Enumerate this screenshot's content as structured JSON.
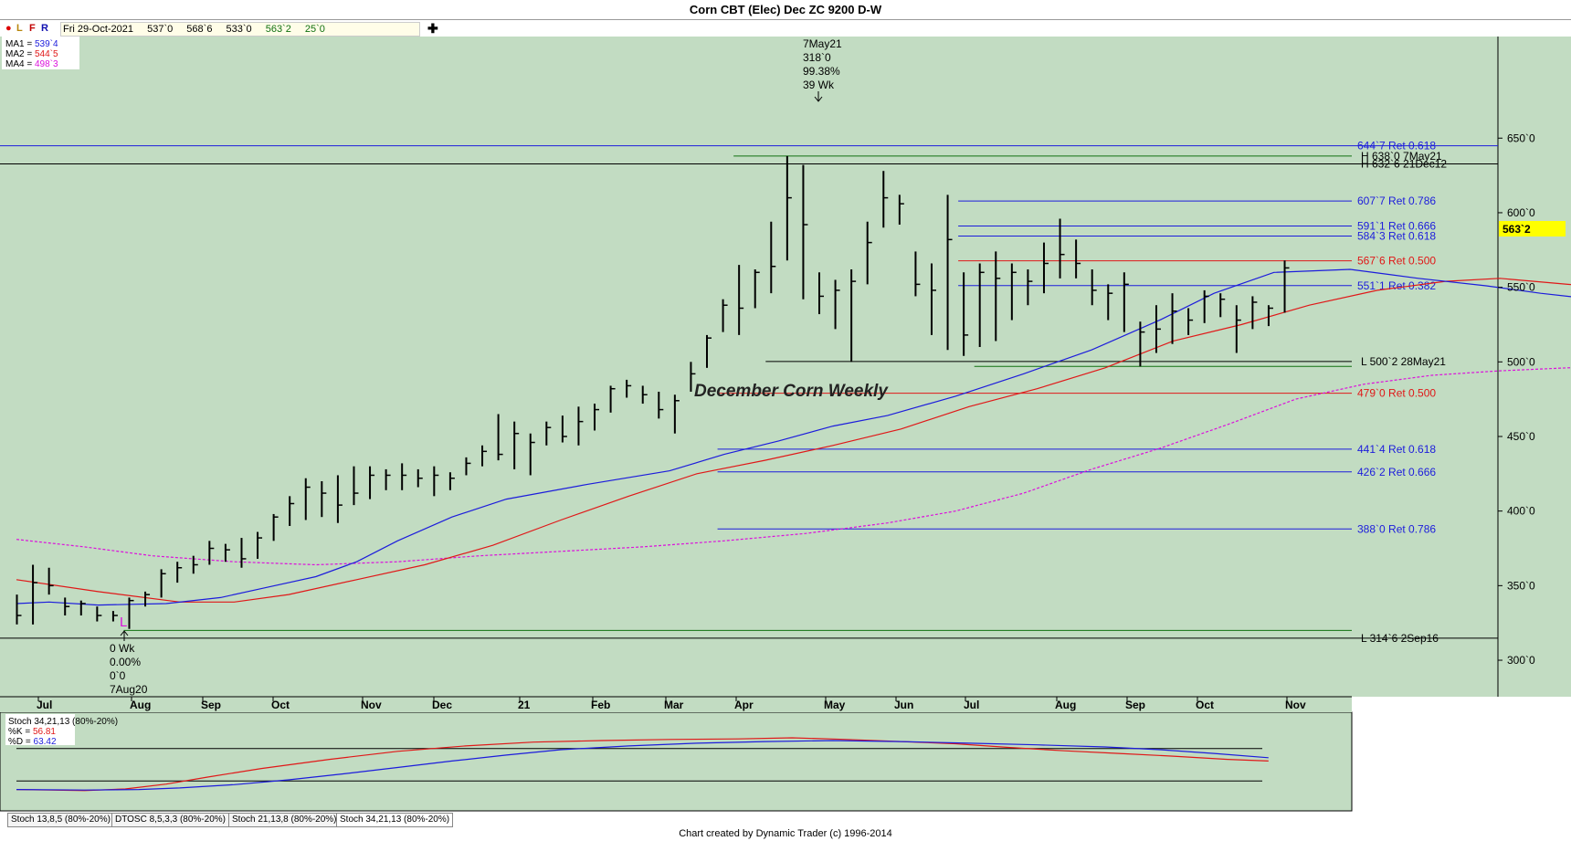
{
  "window": {
    "title": "Corn CBT (Elec) Dec ZC 9200 D-W"
  },
  "toolbar": {
    "buttons": [
      "L",
      "F",
      "R"
    ],
    "date": "Fri 29-Oct-2021",
    "open": "537`0",
    "high": "568`6",
    "low": "533`0",
    "close": "563`2",
    "change": "25`0",
    "add_icon": "plus-icon"
  },
  "colors": {
    "background": "#c2dcc2",
    "ma1": "#1c1cdc",
    "ma2": "#e01818",
    "ma4": "#dc10dc",
    "price_tag": "#ffff00"
  },
  "chart_data": {
    "type": "bar",
    "title": "December Corn Weekly",
    "ylim": [
      280,
      680
    ],
    "y_ticks": [
      "300`0",
      "350`0",
      "400`0",
      "450`0",
      "500`0",
      "550`0",
      "600`0",
      "650`0"
    ],
    "x_months": [
      "Jul",
      "Aug",
      "Sep",
      "Oct",
      "Nov",
      "Dec",
      "21",
      "Feb",
      "Mar",
      "Apr",
      "May",
      "Jun",
      "Jul",
      "Aug",
      "Sep",
      "Oct",
      "Nov"
    ],
    "last_price": "563`2",
    "legend": [
      {
        "label": "MA1 = ",
        "value": "539`4"
      },
      {
        "label": "MA2 = ",
        "value": "544`5"
      },
      {
        "label": "MA4 = ",
        "value": "498`3"
      }
    ],
    "bars": [
      {
        "h": 344,
        "l": 324,
        "c": 330
      },
      {
        "h": 364,
        "l": 324,
        "c": 352
      },
      {
        "h": 362,
        "l": 344,
        "c": 350
      },
      {
        "h": 342,
        "l": 330,
        "c": 336
      },
      {
        "h": 340,
        "l": 330,
        "c": 338
      },
      {
        "h": 336,
        "l": 326,
        "c": 330
      },
      {
        "h": 333,
        "l": 326,
        "c": 330
      },
      {
        "h": 342,
        "l": 321,
        "c": 340
      },
      {
        "h": 346,
        "l": 336,
        "c": 344
      },
      {
        "h": 361,
        "l": 342,
        "c": 358
      },
      {
        "h": 366,
        "l": 352,
        "c": 362
      },
      {
        "h": 370,
        "l": 358,
        "c": 364
      },
      {
        "h": 380,
        "l": 364,
        "c": 375
      },
      {
        "h": 378,
        "l": 366,
        "c": 374
      },
      {
        "h": 382,
        "l": 362,
        "c": 368
      },
      {
        "h": 386,
        "l": 368,
        "c": 382
      },
      {
        "h": 398,
        "l": 380,
        "c": 396
      },
      {
        "h": 410,
        "l": 390,
        "c": 405
      },
      {
        "h": 422,
        "l": 394,
        "c": 416
      },
      {
        "h": 420,
        "l": 396,
        "c": 412
      },
      {
        "h": 424,
        "l": 392,
        "c": 404
      },
      {
        "h": 430,
        "l": 404,
        "c": 412
      },
      {
        "h": 430,
        "l": 408,
        "c": 424
      },
      {
        "h": 428,
        "l": 414,
        "c": 424
      },
      {
        "h": 432,
        "l": 414,
        "c": 424
      },
      {
        "h": 428,
        "l": 416,
        "c": 422
      },
      {
        "h": 430,
        "l": 410,
        "c": 424
      },
      {
        "h": 426,
        "l": 414,
        "c": 422
      },
      {
        "h": 436,
        "l": 424,
        "c": 432
      },
      {
        "h": 444,
        "l": 430,
        "c": 440
      },
      {
        "h": 465,
        "l": 434,
        "c": 438
      },
      {
        "h": 460,
        "l": 428,
        "c": 452
      },
      {
        "h": 452,
        "l": 424,
        "c": 446
      },
      {
        "h": 460,
        "l": 444,
        "c": 456
      },
      {
        "h": 464,
        "l": 446,
        "c": 450
      },
      {
        "h": 470,
        "l": 444,
        "c": 460
      },
      {
        "h": 472,
        "l": 454,
        "c": 468
      },
      {
        "h": 484,
        "l": 466,
        "c": 482
      },
      {
        "h": 488,
        "l": 476,
        "c": 484
      },
      {
        "h": 484,
        "l": 472,
        "c": 478
      },
      {
        "h": 480,
        "l": 462,
        "c": 468
      },
      {
        "h": 478,
        "l": 452,
        "c": 474
      },
      {
        "h": 500,
        "l": 480,
        "c": 492
      },
      {
        "h": 518,
        "l": 496,
        "c": 516
      },
      {
        "h": 542,
        "l": 520,
        "c": 538
      },
      {
        "h": 565,
        "l": 518,
        "c": 536
      },
      {
        "h": 562,
        "l": 536,
        "c": 560
      },
      {
        "h": 594,
        "l": 546,
        "c": 564
      },
      {
        "h": 638,
        "l": 568,
        "c": 610
      },
      {
        "h": 632,
        "l": 542,
        "c": 592
      },
      {
        "h": 560,
        "l": 532,
        "c": 544
      },
      {
        "h": 555,
        "l": 522,
        "c": 548
      },
      {
        "h": 562,
        "l": 500,
        "c": 554
      },
      {
        "h": 594,
        "l": 552,
        "c": 580
      },
      {
        "h": 628,
        "l": 590,
        "c": 610
      },
      {
        "h": 612,
        "l": 592,
        "c": 606
      },
      {
        "h": 574,
        "l": 544,
        "c": 552
      },
      {
        "h": 566,
        "l": 518,
        "c": 548
      },
      {
        "h": 612,
        "l": 508,
        "c": 582
      },
      {
        "h": 560,
        "l": 504,
        "c": 518
      },
      {
        "h": 566,
        "l": 510,
        "c": 560
      },
      {
        "h": 574,
        "l": 514,
        "c": 556
      },
      {
        "h": 566,
        "l": 528,
        "c": 560
      },
      {
        "h": 562,
        "l": 538,
        "c": 554
      },
      {
        "h": 580,
        "l": 546,
        "c": 566
      },
      {
        "h": 596,
        "l": 556,
        "c": 572
      },
      {
        "h": 582,
        "l": 556,
        "c": 566
      },
      {
        "h": 562,
        "l": 538,
        "c": 548
      },
      {
        "h": 552,
        "l": 528,
        "c": 546
      },
      {
        "h": 560,
        "l": 520,
        "c": 552
      },
      {
        "h": 527,
        "l": 497,
        "c": 520
      },
      {
        "h": 538,
        "l": 506,
        "c": 522
      },
      {
        "h": 546,
        "l": 512,
        "c": 534
      },
      {
        "h": 536,
        "l": 518,
        "c": 528
      },
      {
        "h": 548,
        "l": 526,
        "c": 544
      },
      {
        "h": 546,
        "l": 530,
        "c": 542
      },
      {
        "h": 538,
        "l": 506,
        "c": 528
      },
      {
        "h": 544,
        "l": 522,
        "c": 540
      },
      {
        "h": 538,
        "l": 524,
        "c": 536
      },
      {
        "h": 568,
        "l": 533,
        "c": 563
      }
    ],
    "ma_lines": {
      "ma1": [
        [
          0,
          338
        ],
        [
          12,
          339
        ],
        [
          30,
          337
        ],
        [
          55,
          338
        ],
        [
          75,
          342
        ],
        [
          90,
          348
        ],
        [
          110,
          356
        ],
        [
          125,
          366
        ],
        [
          140,
          380
        ],
        [
          160,
          396
        ],
        [
          180,
          408
        ],
        [
          210,
          418
        ],
        [
          240,
          427
        ],
        [
          260,
          438
        ],
        [
          280,
          447
        ],
        [
          300,
          457
        ],
        [
          320,
          464
        ],
        [
          345,
          477
        ],
        [
          370,
          492
        ],
        [
          395,
          508
        ],
        [
          420,
          528
        ],
        [
          440,
          546
        ],
        [
          462,
          560
        ],
        [
          490,
          562
        ],
        [
          515,
          556
        ],
        [
          540,
          551
        ],
        [
          560,
          546
        ],
        [
          590,
          540
        ],
        [
          615,
          538
        ],
        [
          640,
          538
        ]
      ],
      "ma2": [
        [
          0,
          354
        ],
        [
          30,
          346
        ],
        [
          60,
          339
        ],
        [
          80,
          339
        ],
        [
          100,
          344
        ],
        [
          125,
          354
        ],
        [
          150,
          364
        ],
        [
          175,
          377
        ],
        [
          200,
          394
        ],
        [
          225,
          410
        ],
        [
          250,
          425
        ],
        [
          275,
          434
        ],
        [
          300,
          444
        ],
        [
          325,
          455
        ],
        [
          350,
          470
        ],
        [
          375,
          482
        ],
        [
          400,
          496
        ],
        [
          425,
          514
        ],
        [
          450,
          525
        ],
        [
          475,
          538
        ],
        [
          500,
          548
        ],
        [
          525,
          554
        ],
        [
          545,
          556
        ],
        [
          570,
          552
        ],
        [
          600,
          548
        ],
        [
          640,
          545
        ]
      ],
      "ma4": [
        [
          0,
          381
        ],
        [
          25,
          376
        ],
        [
          50,
          370
        ],
        [
          80,
          366
        ],
        [
          110,
          364
        ],
        [
          140,
          366
        ],
        [
          170,
          370
        ],
        [
          200,
          373
        ],
        [
          230,
          376
        ],
        [
          260,
          380
        ],
        [
          290,
          385
        ],
        [
          320,
          392
        ],
        [
          345,
          400
        ],
        [
          370,
          412
        ],
        [
          395,
          428
        ],
        [
          420,
          442
        ],
        [
          445,
          458
        ],
        [
          470,
          475
        ],
        [
          495,
          485
        ],
        [
          520,
          491
        ],
        [
          545,
          494
        ],
        [
          570,
          496
        ],
        [
          600,
          498
        ],
        [
          640,
          499
        ]
      ]
    },
    "fib_levels": [
      {
        "price": 644.875,
        "label": "644`7 Ret 0.618",
        "color": "#1c1cdc",
        "start": -1
      },
      {
        "price": 607.875,
        "label": "607`7 Ret 0.786",
        "color": "#1c1cdc",
        "start": 59
      },
      {
        "price": 591.125,
        "label": "591`1 Ret 0.666",
        "color": "#1c1cdc",
        "start": 59
      },
      {
        "price": 584.375,
        "label": "584`3 Ret 0.618",
        "color": "#1c1cdc",
        "start": 59
      },
      {
        "price": 567.75,
        "label": "567`6 Ret 0.500",
        "color": "#e01818",
        "start": 59
      },
      {
        "price": 551.125,
        "label": "551`1 Ret 0.382",
        "color": "#1c1cdc",
        "start": 59
      },
      {
        "price": 479.0,
        "label": "479`0 Ret 0.500",
        "color": "#e01818",
        "start": 44
      },
      {
        "price": 441.5,
        "label": "441`4 Ret 0.618",
        "color": "#1c1cdc",
        "start": 44
      },
      {
        "price": 426.25,
        "label": "426`2 Ret 0.666",
        "color": "#1c1cdc",
        "start": 44
      },
      {
        "price": 388.0,
        "label": "388`0 Ret 0.786",
        "color": "#1c1cdc",
        "start": 44
      }
    ],
    "hl_levels": [
      {
        "price": 638.0,
        "label": "H 638`0 7May21",
        "color": "#107010",
        "start": 45
      },
      {
        "price": 632.75,
        "label": "H 632`6 21Dec12",
        "color": "#000000",
        "start": -1
      },
      {
        "price": 500.25,
        "label": "L 500`2 28May21",
        "color": "#000000",
        "start": 47
      },
      {
        "price": 497.0,
        "label": "",
        "color": "#107010",
        "start": 60
      },
      {
        "price": 320.0,
        "label": "",
        "color": "#107010",
        "start": 7
      },
      {
        "price": 314.75,
        "label": "L 314`6 2Sep16",
        "color": "#000000",
        "start": -1
      }
    ],
    "annotations": {
      "high": [
        "7May21",
        "318`0",
        "99.38%",
        "39 Wk"
      ],
      "low": [
        "0 Wk",
        "0.00%",
        "0`0",
        "7Aug20"
      ],
      "low_marker": "L"
    },
    "oscillator": {
      "title": "Stoch 34,21,13 (80%-20%)",
      "k_label": "%K = ",
      "k_value": "56.81",
      "d_label": "%D = ",
      "d_value": "63.42",
      "k": [
        [
          0,
          4
        ],
        [
          12,
          3
        ],
        [
          25,
          2
        ],
        [
          40,
          5
        ],
        [
          55,
          14
        ],
        [
          70,
          27
        ],
        [
          90,
          43
        ],
        [
          115,
          60
        ],
        [
          140,
          75
        ],
        [
          165,
          85
        ],
        [
          190,
          92
        ],
        [
          215,
          95
        ],
        [
          240,
          97
        ],
        [
          265,
          98
        ],
        [
          285,
          100
        ],
        [
          305,
          97
        ],
        [
          325,
          93
        ],
        [
          345,
          89
        ],
        [
          365,
          82
        ],
        [
          385,
          76
        ],
        [
          405,
          71
        ],
        [
          425,
          66
        ],
        [
          445,
          60
        ],
        [
          460,
          57
        ]
      ],
      "d": [
        [
          0,
          4
        ],
        [
          25,
          3
        ],
        [
          45,
          4
        ],
        [
          60,
          7
        ],
        [
          80,
          13
        ],
        [
          100,
          22
        ],
        [
          120,
          33
        ],
        [
          140,
          45
        ],
        [
          160,
          57
        ],
        [
          180,
          68
        ],
        [
          200,
          78
        ],
        [
          225,
          85
        ],
        [
          250,
          90
        ],
        [
          275,
          93
        ],
        [
          300,
          95
        ],
        [
          325,
          93
        ],
        [
          350,
          90
        ],
        [
          375,
          87
        ],
        [
          400,
          83
        ],
        [
          420,
          78
        ],
        [
          440,
          71
        ],
        [
          460,
          63
        ]
      ]
    }
  },
  "tabs": [
    "Stoch 13,8,5 (80%-20%)",
    "DTOSC 8,5,3,3 (80%-20%)",
    "Stoch 21,13,8 (80%-20%)",
    "Stoch 34,21,13 (80%-20%)"
  ],
  "footer": {
    "credit": "Chart created by Dynamic Trader  (c) 1996-2014"
  }
}
